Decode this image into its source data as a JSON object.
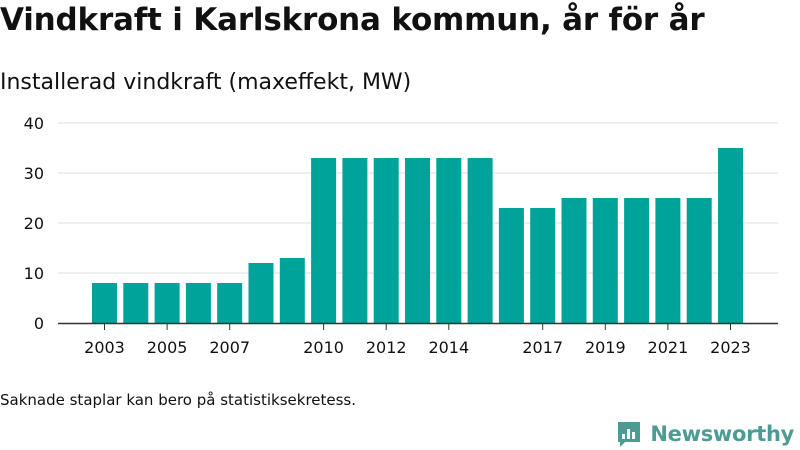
{
  "title": "Vindkraft i Karlskrona kommun, år för år",
  "subtitle": "Installerad vindkraft (maxeffekt, MW)",
  "footnote": "Saknade staplar kan bero på statistiksekretess.",
  "brand": {
    "name": "Newsworthy",
    "color": "#4b9c93",
    "icon": "newsworthy-logo-icon"
  },
  "colors": {
    "bar": "#00a39a",
    "grid": "#dddddd",
    "axis": "#333333",
    "text": "#111111"
  },
  "chart_data": {
    "type": "bar",
    "title": "Installerad vindkraft (maxeffekt, MW)",
    "xlabel": "",
    "ylabel": "",
    "ylim": [
      0,
      40
    ],
    "yticks": [
      0,
      10,
      20,
      30,
      40
    ],
    "grid": true,
    "legend": "none",
    "categories": [
      "2003",
      "2004",
      "2005",
      "2006",
      "2007",
      "2008",
      "2009",
      "2010",
      "2011",
      "2012",
      "2013",
      "2014",
      "2015",
      "2016",
      "2017",
      "2018",
      "2019",
      "2020",
      "2021",
      "2022",
      "2023"
    ],
    "xtick_labels": [
      "2003",
      "2005",
      "2007",
      "2010",
      "2012",
      "2014",
      "2017",
      "2019",
      "2021",
      "2023"
    ],
    "values": [
      8,
      8,
      8,
      8,
      8,
      12,
      13,
      33,
      33,
      33,
      33,
      33,
      33,
      23,
      23,
      25,
      25,
      25,
      25,
      25,
      35
    ]
  }
}
